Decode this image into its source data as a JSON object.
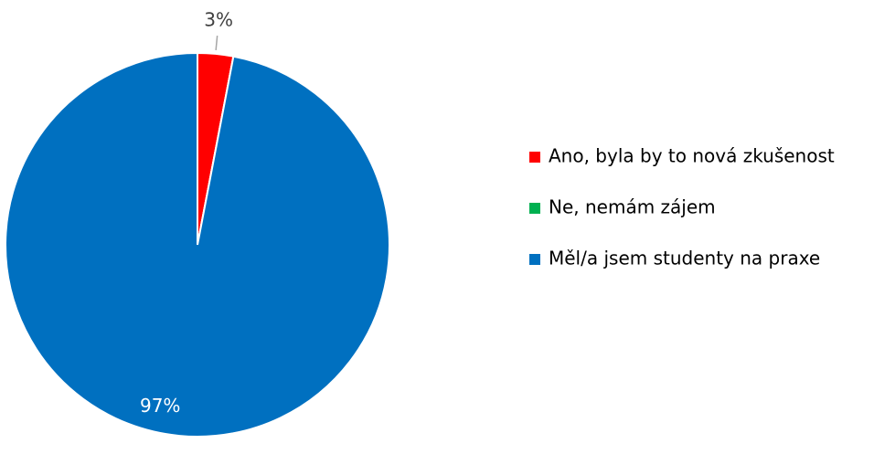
{
  "chart_data": {
    "type": "pie",
    "categories": [
      "Ano, byla by to nová zkušenost",
      "Ne, nemám zájem",
      "Měl/a jsem studenty na praxe"
    ],
    "values": [
      3,
      0,
      97
    ],
    "value_labels": [
      "3%",
      null,
      "97%"
    ],
    "colors": [
      "#ff0000",
      "#00b050",
      "#0070c0"
    ],
    "legend": "right"
  }
}
